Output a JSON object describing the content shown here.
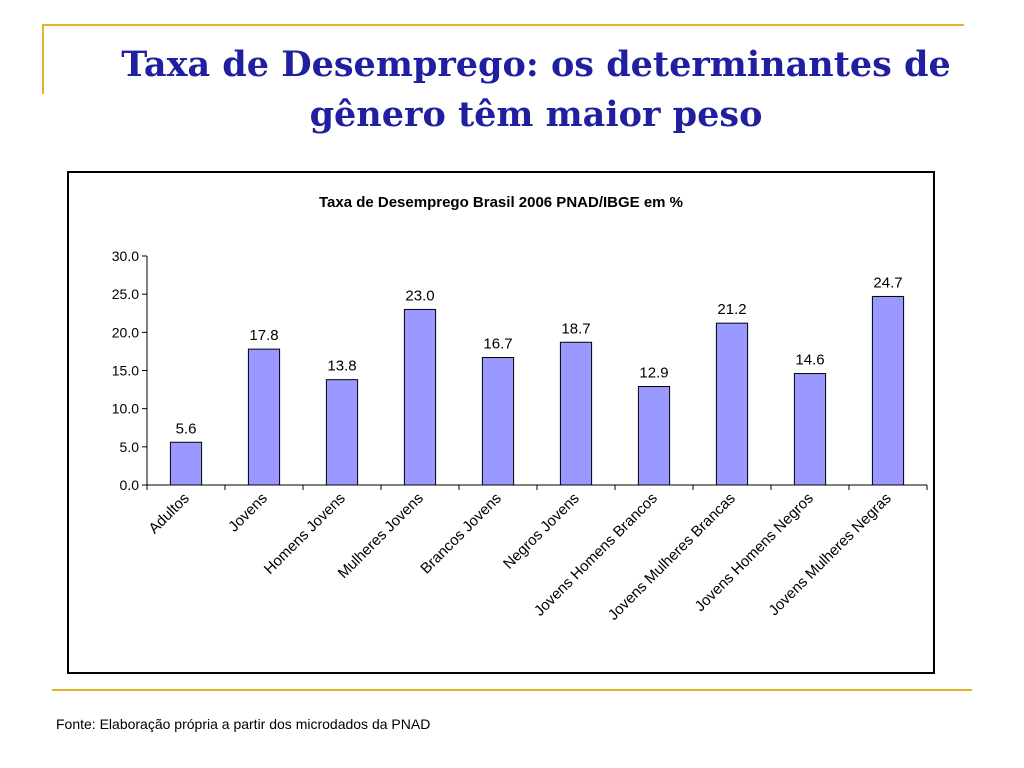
{
  "slide": {
    "title_line1": "Taxa de Desemprego: os determinantes de",
    "title_line2": "gênero têm maior peso",
    "source": "Fonte: Elaboração própria a partir dos microdados da PNAD"
  },
  "chart_data": {
    "type": "bar",
    "title": "Taxa de Desemprego Brasil 2006 PNAD/IBGE em %",
    "xlabel": "",
    "ylabel": "",
    "categories": [
      "Adultos",
      "Jovens",
      "Homens Jovens",
      "Mulheres Jovens",
      "Brancos Jovens",
      "Negros Jovens",
      "Jovens Homens Brancos",
      "Jovens Mulheres Brancas",
      "Jovens Homens Negros",
      "Jovens Mulheres Negras"
    ],
    "values": [
      5.6,
      17.8,
      13.8,
      23.0,
      16.7,
      18.7,
      12.9,
      21.2,
      14.6,
      24.7
    ],
    "ylim": [
      0,
      30
    ],
    "yticks": [
      0,
      5,
      10,
      15,
      20,
      25,
      30
    ],
    "grid": false,
    "legend": "none",
    "bar_color": "#9999ff",
    "bar_border_color": "#000000"
  }
}
